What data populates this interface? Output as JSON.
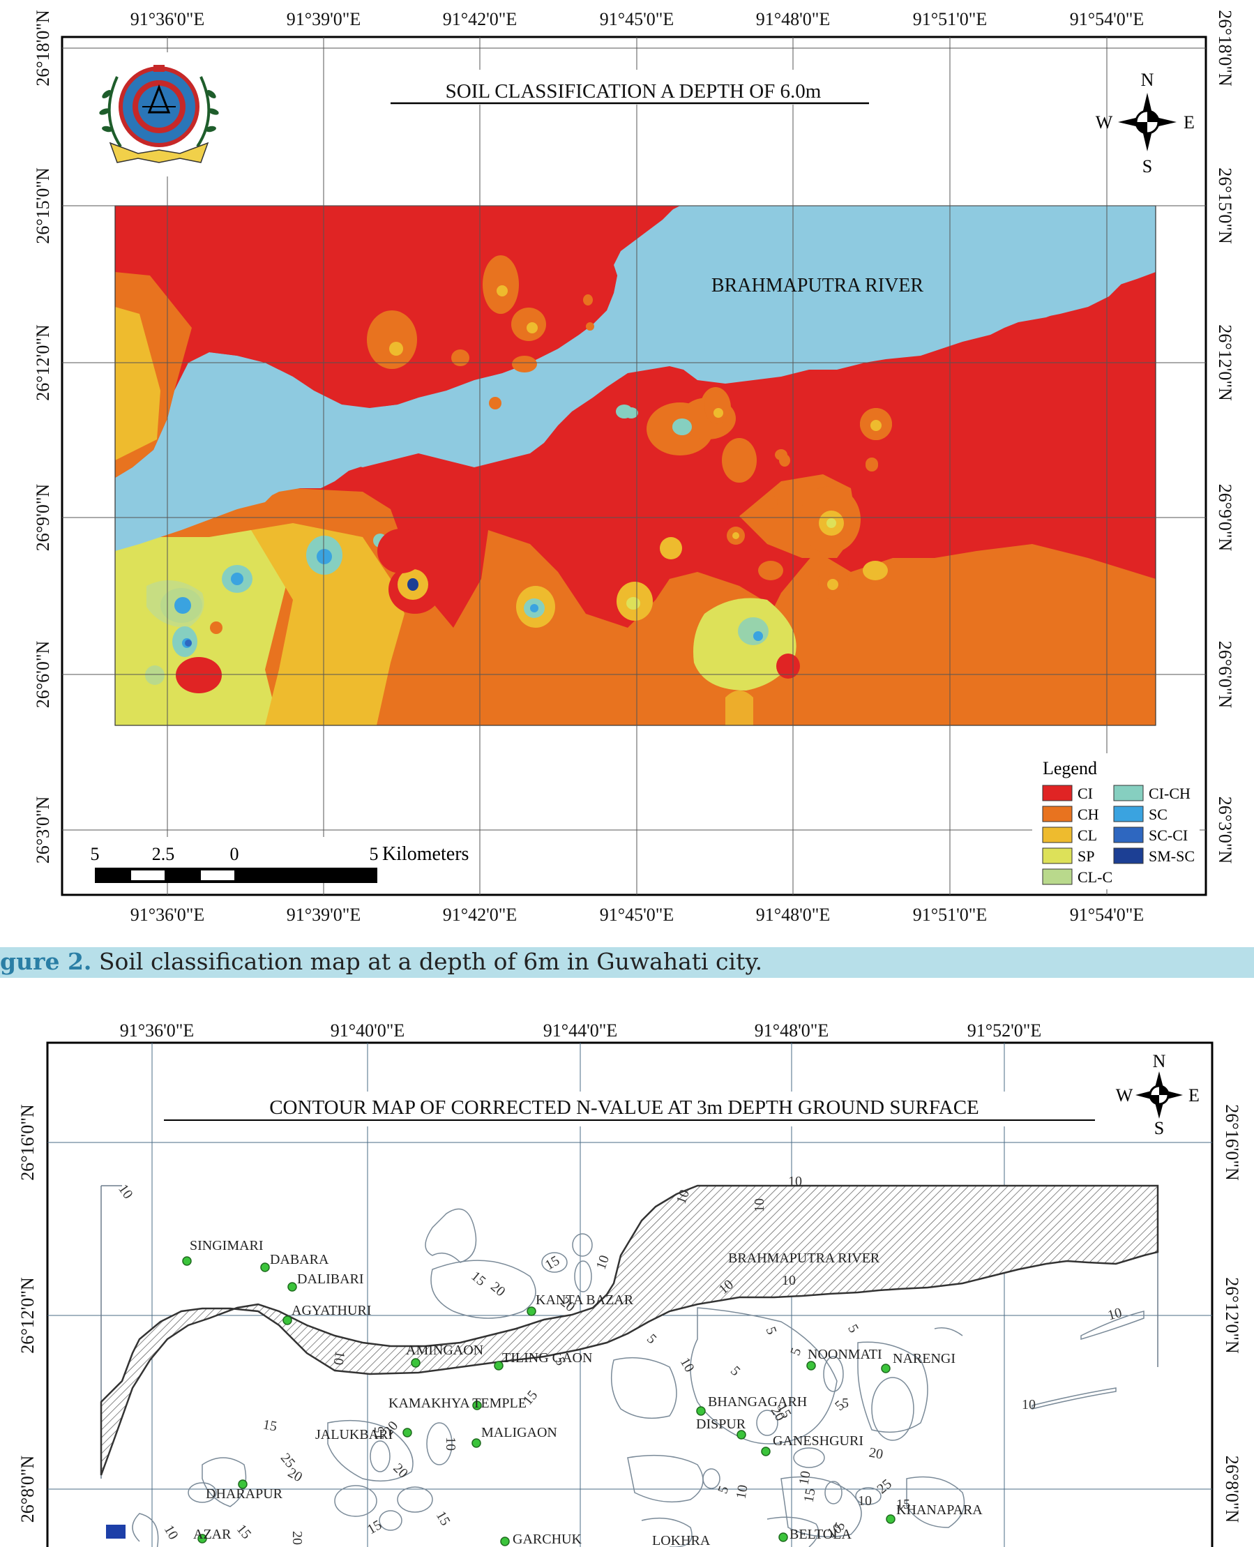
{
  "map1": {
    "title": "SOIL CLASSIFICATION A DEPTH OF 6.0m",
    "river_label": "BRAHMAPUTRA RIVER",
    "lon_ticks": [
      "91°36'0\"E",
      "91°39'0\"E",
      "91°42'0\"E",
      "91°45'0\"E",
      "91°48'0\"E",
      "91°51'0\"E",
      "91°54'0\"E"
    ],
    "lat_ticks": [
      "26°18'0\"N",
      "26°15'0\"N",
      "26°12'0\"N",
      "26°9'0\"N",
      "26°6'0\"N",
      "26°3'0\"N"
    ],
    "compass": {
      "n": "N",
      "s": "S",
      "e": "E",
      "w": "W"
    },
    "scalebar": {
      "l0": "5",
      "l1": "2.5",
      "l2": "0",
      "l3": "5",
      "unit": "Kilometers"
    },
    "legend": {
      "title": "Legend",
      "items": [
        {
          "label": "CI",
          "color": "#e02424"
        },
        {
          "label": "CH",
          "color": "#e8731f"
        },
        {
          "label": "CL",
          "color": "#eebb2e"
        },
        {
          "label": "SP",
          "color": "#dde159"
        },
        {
          "label": "CL-C",
          "color": "#b9d98c"
        },
        {
          "label": "CI-CH",
          "color": "#86cfc0"
        },
        {
          "label": "SC",
          "color": "#3aa3e0"
        },
        {
          "label": "SC-CI",
          "color": "#2e67c0"
        },
        {
          "label": "SM-SC",
          "color": "#1c3f94"
        }
      ]
    }
  },
  "caption": {
    "label": "gure 2.",
    "text": " Soil classification map at a depth of 6m in Guwahati city."
  },
  "map2": {
    "title": "CONTOUR MAP OF CORRECTED N-VALUE AT 3m DEPTH GROUND SURFACE",
    "lon_ticks": [
      "91°36'0\"E",
      "91°40'0\"E",
      "91°44'0\"E",
      "91°48'0\"E",
      "91°52'0\"E"
    ],
    "lat_ticks": [
      "26°16'0\"N",
      "26°12'0\"N",
      "26°8'0\"N"
    ],
    "compass": {
      "n": "N",
      "s": "S",
      "e": "E",
      "w": "W"
    },
    "places": [
      "SINGIMARI",
      "DABARA",
      "DALIBARI",
      "AGYATHURI",
      "KANTA BAZAR",
      "BRAHMAPUTRA RIVER",
      "AMINGAON",
      "TILING GAON",
      "NOONMATI",
      "NARENGI",
      "KAMAKHYA TEMPLE",
      "BHANGAGARH",
      "DISPUR",
      "JALUKBARI",
      "MALIGAON",
      "GANESHGURI",
      "DHARAPUR",
      "KHANAPARA",
      "AZAR",
      "GARCHUK",
      "LOKHRA",
      "BELTOLA"
    ],
    "contour_labels": [
      "10",
      "15",
      "20",
      "5",
      "25"
    ]
  },
  "colors": {
    "river": "#8ecae0",
    "caption_bg": "#b7dfe9",
    "caption_label": "#2a7ea5",
    "hatch": "#555555"
  }
}
